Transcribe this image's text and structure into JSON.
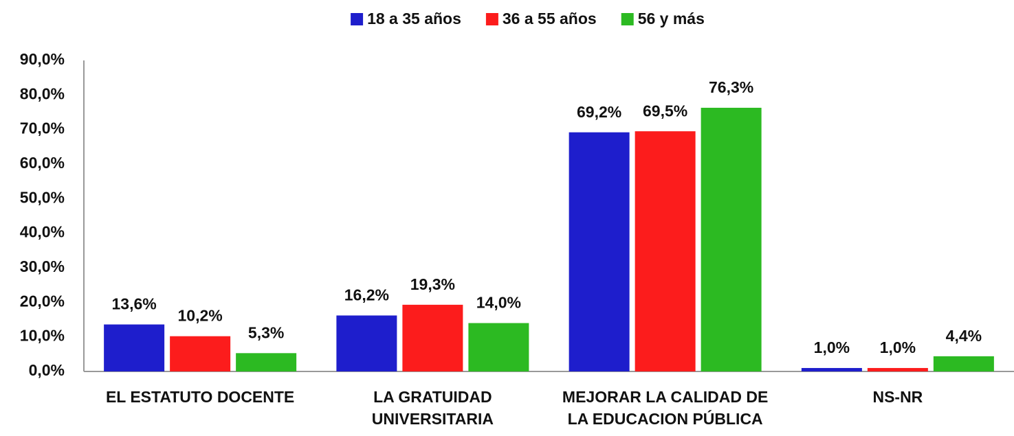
{
  "chart_data": {
    "type": "bar",
    "categories": [
      "EL ESTATUTO DOCENTE",
      "LA GRATUIDAD UNIVERSITARIA",
      "MEJORAR LA CALIDAD DE LA EDUCACION PÚBLICA",
      "NS-NR"
    ],
    "series": [
      {
        "name": "18 a 35 años",
        "color": "#1e1ecc",
        "values": [
          13.6,
          16.2,
          69.2,
          1.0
        ],
        "value_labels": [
          "13,6%",
          "16,2%",
          "69,2%",
          "1,0%"
        ]
      },
      {
        "name": "36 a 55 años",
        "color": "#fc1c1c",
        "values": [
          10.2,
          19.3,
          69.5,
          1.0
        ],
        "value_labels": [
          "10,2%",
          "19,3%",
          "69,5%",
          "1,0%"
        ]
      },
      {
        "name": "56 y más",
        "color": "#2cba22",
        "values": [
          5.3,
          14.0,
          76.3,
          4.4
        ],
        "value_labels": [
          "5,3%",
          "14,0%",
          "76,3%",
          "4,4%"
        ]
      }
    ],
    "ylim": [
      0,
      90
    ],
    "yticks": [
      {
        "value": 0,
        "label": "0,0%"
      },
      {
        "value": 10,
        "label": "10,0%"
      },
      {
        "value": 20,
        "label": "20,0%"
      },
      {
        "value": 30,
        "label": "30,0%"
      },
      {
        "value": 40,
        "label": "40,0%"
      },
      {
        "value": 50,
        "label": "50,0%"
      },
      {
        "value": 60,
        "label": "60,0%"
      },
      {
        "value": 70,
        "label": "70,0%"
      },
      {
        "value": 80,
        "label": "80,0%"
      },
      {
        "value": 90,
        "label": "90,0%"
      }
    ],
    "legend": "top",
    "grid": false
  }
}
